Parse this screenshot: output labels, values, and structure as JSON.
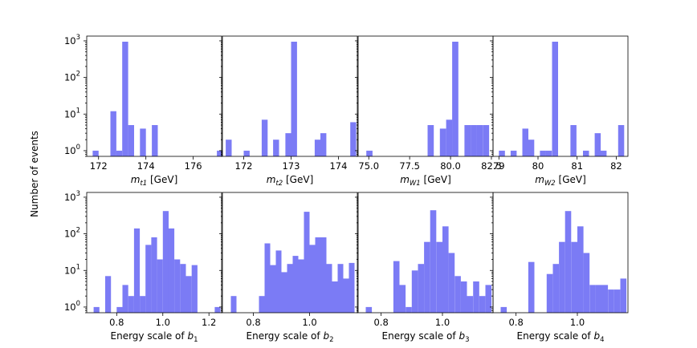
{
  "figure": {
    "ylabel": "Number of events"
  },
  "chart_data": [
    {
      "type": "bar",
      "title": "",
      "xlabel_main": "m",
      "xlabel_sub": "t1",
      "xlabel_unit": " [GeV]",
      "xlim": [
        171.5,
        177.2
      ],
      "yscale": "log",
      "ylim": [
        0.7,
        1000
      ],
      "xticks": [
        172,
        174,
        176
      ],
      "bins": [
        {
          "x": 171.75,
          "w": 0.25,
          "v": 1
        },
        {
          "x": 172.5,
          "w": 0.25,
          "v": 12
        },
        {
          "x": 172.75,
          "w": 0.25,
          "v": 1
        },
        {
          "x": 173.0,
          "w": 0.25,
          "v": 950
        },
        {
          "x": 173.25,
          "w": 0.25,
          "v": 5
        },
        {
          "x": 173.75,
          "w": 0.25,
          "v": 4
        },
        {
          "x": 174.25,
          "w": 0.25,
          "v": 5
        },
        {
          "x": 177.0,
          "w": 0.25,
          "v": 1
        }
      ]
    },
    {
      "type": "bar",
      "title": "",
      "xlabel_main": "m",
      "xlabel_sub": "t2",
      "xlabel_unit": " [GeV]",
      "xlim": [
        171.55,
        174.4
      ],
      "yscale": "log",
      "ylim": [
        0.7,
        1000
      ],
      "xticks": [
        172,
        173,
        174
      ],
      "bins": [
        {
          "x": 171.62,
          "w": 0.125,
          "v": 2
        },
        {
          "x": 172.0,
          "w": 0.125,
          "v": 1
        },
        {
          "x": 172.38,
          "w": 0.125,
          "v": 7
        },
        {
          "x": 172.62,
          "w": 0.125,
          "v": 2
        },
        {
          "x": 172.88,
          "w": 0.125,
          "v": 3
        },
        {
          "x": 173.0,
          "w": 0.125,
          "v": 950
        },
        {
          "x": 173.5,
          "w": 0.125,
          "v": 2
        },
        {
          "x": 173.62,
          "w": 0.125,
          "v": 3
        },
        {
          "x": 174.25,
          "w": 0.125,
          "v": 6
        }
      ]
    },
    {
      "type": "bar",
      "title": "",
      "xlabel_main": "m",
      "xlabel_sub": "W1",
      "xlabel_unit": " [GeV]",
      "xlim": [
        74.35,
        82.6
      ],
      "yscale": "log",
      "ylim": [
        0.7,
        1000
      ],
      "xticks": [
        "75.0",
        "77.5",
        "80.0",
        "82.5"
      ],
      "bins": [
        {
          "x": 74.85,
          "w": 0.38,
          "v": 1
        },
        {
          "x": 78.6,
          "w": 0.38,
          "v": 5
        },
        {
          "x": 79.35,
          "w": 0.38,
          "v": 4
        },
        {
          "x": 79.73,
          "w": 0.38,
          "v": 7
        },
        {
          "x": 80.1,
          "w": 0.38,
          "v": 950
        },
        {
          "x": 80.85,
          "w": 0.38,
          "v": 5
        },
        {
          "x": 81.23,
          "w": 0.38,
          "v": 5
        },
        {
          "x": 81.6,
          "w": 0.38,
          "v": 5
        },
        {
          "x": 81.98,
          "w": 0.38,
          "v": 5
        }
      ]
    },
    {
      "type": "bar",
      "title": "",
      "xlabel_main": "m",
      "xlabel_sub": "W2",
      "xlabel_unit": " [GeV]",
      "xlim": [
        78.85,
        82.3
      ],
      "yscale": "log",
      "ylim": [
        0.7,
        1000
      ],
      "xticks": [
        79,
        80,
        81,
        82
      ],
      "bins": [
        {
          "x": 79.0,
          "w": 0.155,
          "v": 1
        },
        {
          "x": 79.3,
          "w": 0.155,
          "v": 1
        },
        {
          "x": 79.6,
          "w": 0.155,
          "v": 4
        },
        {
          "x": 79.75,
          "w": 0.155,
          "v": 2
        },
        {
          "x": 80.05,
          "w": 0.155,
          "v": 1
        },
        {
          "x": 80.2,
          "w": 0.155,
          "v": 1
        },
        {
          "x": 80.36,
          "w": 0.155,
          "v": 950
        },
        {
          "x": 80.83,
          "w": 0.155,
          "v": 5
        },
        {
          "x": 81.15,
          "w": 0.155,
          "v": 1
        },
        {
          "x": 81.45,
          "w": 0.155,
          "v": 3
        },
        {
          "x": 81.6,
          "w": 0.155,
          "v": 1
        },
        {
          "x": 82.05,
          "w": 0.155,
          "v": 5
        }
      ]
    },
    {
      "type": "bar",
      "title": "",
      "xlabel_main": "Energy scale of ",
      "xlabel_bmain": "b",
      "xlabel_sub": "1",
      "xlabel_unit": "",
      "xlim": [
        0.67,
        1.255
      ],
      "yscale": "log",
      "ylim": [
        0.7,
        1000
      ],
      "xticks": [
        "0.8",
        "1.0",
        "1.2"
      ],
      "bins": [
        {
          "x": 0.7,
          "w": 0.025,
          "v": 1
        },
        {
          "x": 0.75,
          "w": 0.025,
          "v": 7
        },
        {
          "x": 0.8,
          "w": 0.025,
          "v": 1
        },
        {
          "x": 0.825,
          "w": 0.025,
          "v": 4
        },
        {
          "x": 0.85,
          "w": 0.025,
          "v": 2
        },
        {
          "x": 0.875,
          "w": 0.025,
          "v": 140
        },
        {
          "x": 0.9,
          "w": 0.025,
          "v": 2
        },
        {
          "x": 0.925,
          "w": 0.025,
          "v": 50
        },
        {
          "x": 0.95,
          "w": 0.025,
          "v": 80
        },
        {
          "x": 0.975,
          "w": 0.025,
          "v": 20
        },
        {
          "x": 1.0,
          "w": 0.025,
          "v": 420
        },
        {
          "x": 1.025,
          "w": 0.025,
          "v": 140
        },
        {
          "x": 1.05,
          "w": 0.025,
          "v": 20
        },
        {
          "x": 1.075,
          "w": 0.025,
          "v": 15
        },
        {
          "x": 1.1,
          "w": 0.025,
          "v": 7
        },
        {
          "x": 1.125,
          "w": 0.025,
          "v": 14
        },
        {
          "x": 1.225,
          "w": 0.025,
          "v": 1
        }
      ]
    },
    {
      "type": "bar",
      "title": "",
      "xlabel_main": "Energy scale of ",
      "xlabel_bmain": "b",
      "xlabel_sub": "2",
      "xlabel_unit": "",
      "xlim": [
        0.69,
        1.17
      ],
      "yscale": "log",
      "ylim": [
        0.7,
        1000
      ],
      "xticks": [
        "0.8",
        "1.0"
      ],
      "bins": [
        {
          "x": 0.72,
          "w": 0.02,
          "v": 2
        },
        {
          "x": 0.82,
          "w": 0.02,
          "v": 2
        },
        {
          "x": 0.84,
          "w": 0.02,
          "v": 55
        },
        {
          "x": 0.86,
          "w": 0.02,
          "v": 14
        },
        {
          "x": 0.88,
          "w": 0.02,
          "v": 35
        },
        {
          "x": 0.9,
          "w": 0.02,
          "v": 9
        },
        {
          "x": 0.92,
          "w": 0.02,
          "v": 15
        },
        {
          "x": 0.94,
          "w": 0.02,
          "v": 25
        },
        {
          "x": 0.96,
          "w": 0.02,
          "v": 20
        },
        {
          "x": 0.98,
          "w": 0.02,
          "v": 400
        },
        {
          "x": 1.0,
          "w": 0.02,
          "v": 50
        },
        {
          "x": 1.02,
          "w": 0.02,
          "v": 80
        },
        {
          "x": 1.04,
          "w": 0.02,
          "v": 80
        },
        {
          "x": 1.06,
          "w": 0.02,
          "v": 15
        },
        {
          "x": 1.08,
          "w": 0.02,
          "v": 5
        },
        {
          "x": 1.1,
          "w": 0.02,
          "v": 15
        },
        {
          "x": 1.12,
          "w": 0.02,
          "v": 6
        },
        {
          "x": 1.14,
          "w": 0.02,
          "v": 16
        }
      ]
    },
    {
      "type": "bar",
      "title": "",
      "xlabel_main": "Energy scale of ",
      "xlabel_bmain": "b",
      "xlabel_sub": "3",
      "xlabel_unit": "",
      "xlim": [
        0.725,
        1.165
      ],
      "yscale": "log",
      "ylim": [
        0.7,
        1000
      ],
      "xticks": [
        "0.8",
        "1.0"
      ],
      "bins": [
        {
          "x": 0.75,
          "w": 0.02,
          "v": 1
        },
        {
          "x": 0.84,
          "w": 0.02,
          "v": 18
        },
        {
          "x": 0.86,
          "w": 0.02,
          "v": 4
        },
        {
          "x": 0.88,
          "w": 0.02,
          "v": 1
        },
        {
          "x": 0.9,
          "w": 0.02,
          "v": 10
        },
        {
          "x": 0.92,
          "w": 0.02,
          "v": 15
        },
        {
          "x": 0.94,
          "w": 0.02,
          "v": 60
        },
        {
          "x": 0.96,
          "w": 0.02,
          "v": 440
        },
        {
          "x": 0.98,
          "w": 0.02,
          "v": 60
        },
        {
          "x": 1.0,
          "w": 0.02,
          "v": 160
        },
        {
          "x": 1.02,
          "w": 0.02,
          "v": 30
        },
        {
          "x": 1.04,
          "w": 0.02,
          "v": 7
        },
        {
          "x": 1.06,
          "w": 0.02,
          "v": 5
        },
        {
          "x": 1.08,
          "w": 0.02,
          "v": 2
        },
        {
          "x": 1.1,
          "w": 0.02,
          "v": 5
        },
        {
          "x": 1.12,
          "w": 0.02,
          "v": 2
        },
        {
          "x": 1.14,
          "w": 0.02,
          "v": 4
        }
      ]
    },
    {
      "type": "bar",
      "title": "",
      "xlabel_main": "Energy scale of ",
      "xlabel_bmain": "b",
      "xlabel_sub": "4",
      "xlabel_unit": "",
      "xlim": [
        0.725,
        1.165
      ],
      "yscale": "log",
      "ylim": [
        0.7,
        1000
      ],
      "xticks": [
        "0.8",
        "1.0"
      ],
      "bins": [
        {
          "x": 0.75,
          "w": 0.02,
          "v": 1
        },
        {
          "x": 0.84,
          "w": 0.02,
          "v": 17
        },
        {
          "x": 0.9,
          "w": 0.02,
          "v": 8
        },
        {
          "x": 0.92,
          "w": 0.02,
          "v": 15
        },
        {
          "x": 0.94,
          "w": 0.02,
          "v": 60
        },
        {
          "x": 0.96,
          "w": 0.02,
          "v": 420
        },
        {
          "x": 0.98,
          "w": 0.02,
          "v": 60
        },
        {
          "x": 1.0,
          "w": 0.02,
          "v": 160
        },
        {
          "x": 1.02,
          "w": 0.02,
          "v": 30
        },
        {
          "x": 1.04,
          "w": 0.02,
          "v": 4
        },
        {
          "x": 1.06,
          "w": 0.02,
          "v": 4
        },
        {
          "x": 1.08,
          "w": 0.02,
          "v": 4
        },
        {
          "x": 1.1,
          "w": 0.02,
          "v": 3
        },
        {
          "x": 1.12,
          "w": 0.02,
          "v": 3
        },
        {
          "x": 1.14,
          "w": 0.02,
          "v": 6
        }
      ]
    }
  ]
}
